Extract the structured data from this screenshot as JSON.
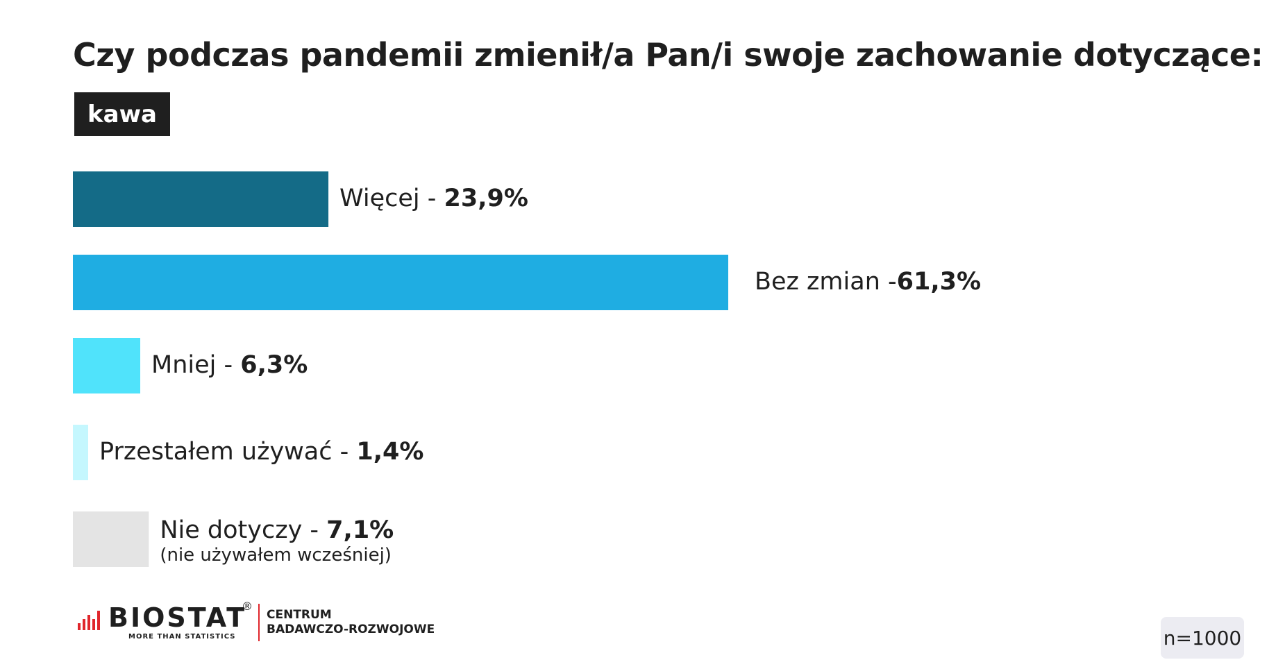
{
  "title": "Czy podczas pandemii zmienił/a Pan/i swoje zachowanie dotyczące:",
  "tag": "kawa",
  "chart_data": {
    "type": "bar",
    "orientation": "horizontal",
    "title": "Czy podczas pandemii zmienił/a Pan/i swoje zachowanie dotyczące:",
    "categories": [
      "Więcej",
      "Bez zmian",
      "Mniej",
      "Przestałem używać",
      "Nie dotyczy"
    ],
    "values": [
      23.9,
      61.3,
      6.3,
      1.4,
      7.1
    ],
    "value_labels": [
      "23,9%",
      "61,3%",
      "6,3%",
      "1,4%",
      "7,1%"
    ],
    "label_prefixes": [
      "Więcej - ",
      "Bez zmian -",
      "Mniej - ",
      "Przestałem używać - ",
      "Nie dotyczy - "
    ],
    "notes": [
      "",
      "",
      "",
      "",
      "(nie używałem wcześniej)"
    ],
    "colors": [
      "#146b87",
      "#1fade2",
      "#50e3fb",
      "#c5f7fe",
      "#e4e4e4"
    ],
    "grid": false,
    "legend": "none"
  },
  "footer": {
    "logo_name": "BIOSTAT",
    "logo_registered": "®",
    "logo_tagline": "MORE THAN STATISTICS",
    "logo_sub_line1": "CENTRUM",
    "logo_sub_line2": "BADAWCZO-ROZWOJOWE",
    "sample": "n=1000"
  }
}
